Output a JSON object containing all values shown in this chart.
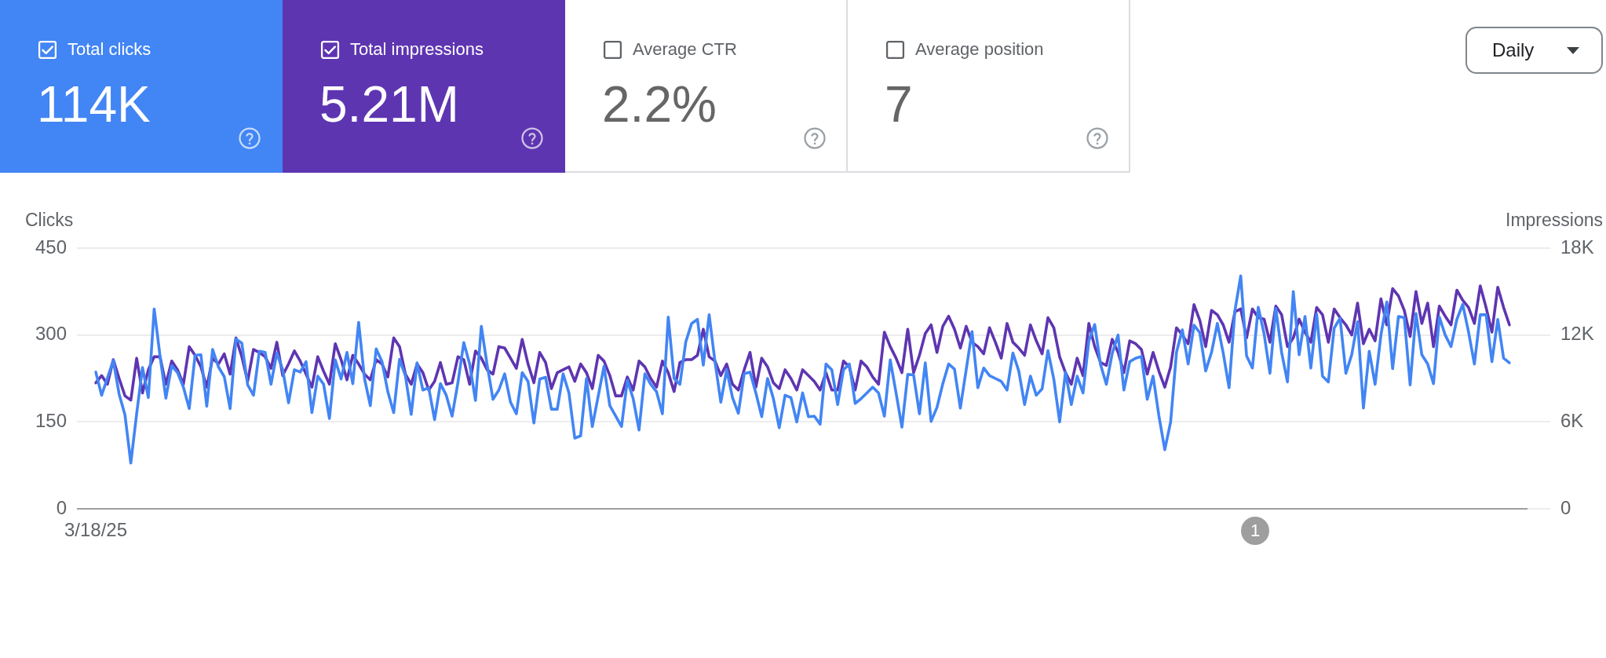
{
  "chart_data": [
    {
      "type": "other",
      "annotations": [
        "Total clicks",
        "114K",
        "Total impressions",
        "5.21M",
        "Average CTR",
        "2.2%",
        "Average position",
        "7",
        "Daily"
      ]
    },
    {
      "type": "line",
      "ylabel": "Clicks",
      "y2label": "Impressions",
      "ylim": [
        0,
        450
      ],
      "yticks": [
        0,
        150,
        300,
        450
      ],
      "y2lim": [
        0,
        18000
      ],
      "y2ticks": [
        0,
        {
          "value": 6000,
          "label": "6K"
        },
        {
          "value": 12000,
          "label": "12K"
        },
        {
          "value": 18000,
          "label": "18K"
        }
      ],
      "grid": "y",
      "annotations": [
        "1"
      ],
      "categories": [
        "3/18/25",
        null,
        null,
        null,
        null,
        null,
        null,
        null,
        null,
        null,
        null,
        null,
        null,
        null,
        null,
        null,
        null,
        null,
        null,
        null,
        null,
        null,
        null,
        null,
        null,
        null,
        null,
        null,
        null,
        null,
        null,
        null,
        null,
        null,
        null,
        null,
        null,
        null,
        null,
        null,
        null,
        null,
        null,
        null,
        null,
        null,
        null,
        null,
        null,
        null,
        null,
        null,
        null,
        null,
        null,
        null,
        null,
        null,
        null,
        null,
        null,
        null,
        null,
        null,
        null,
        null,
        null,
        null,
        null,
        null,
        null,
        null,
        null,
        null,
        null,
        null,
        null,
        null,
        null,
        null,
        null,
        null,
        null,
        null,
        null,
        null,
        null,
        null,
        null,
        null,
        null,
        null,
        null,
        null,
        null,
        null,
        null,
        null,
        null,
        null,
        null,
        null,
        null,
        null,
        null,
        null,
        null,
        null,
        null,
        null,
        null,
        null,
        null,
        null,
        null,
        null,
        null,
        null,
        null,
        null,
        null,
        null,
        null,
        null,
        null,
        null,
        null,
        null,
        null,
        null,
        null,
        null,
        null,
        null,
        null,
        null,
        null,
        null,
        null,
        null,
        null,
        null,
        null,
        null,
        null,
        null,
        null,
        null,
        null,
        null,
        null,
        null,
        null,
        null,
        null,
        null,
        null,
        null,
        null,
        null,
        null,
        null,
        null,
        null,
        null,
        null,
        null,
        null,
        null,
        null,
        null,
        null,
        null,
        null,
        null,
        null,
        null,
        null,
        null,
        null,
        null,
        null,
        null,
        null,
        null,
        null,
        null,
        null,
        null,
        null,
        null,
        null,
        null,
        null,
        null,
        null,
        null,
        null,
        null,
        null,
        null,
        null,
        null,
        null,
        null,
        null,
        null,
        null,
        null,
        null,
        null,
        null,
        null,
        null,
        null,
        null,
        null,
        null,
        null,
        null,
        null,
        null,
        null,
        null,
        null,
        null,
        null,
        null,
        null,
        null,
        null,
        null,
        null,
        null,
        null,
        null,
        null,
        null,
        null,
        null,
        null,
        null,
        null
      ],
      "series": [
        {
          "color": "#4285f4",
          "values": [
            236,
            196,
            226,
            256,
            198,
            162,
            79,
            164,
            244,
            192,
            345,
            264,
            191,
            247,
            235,
            210,
            173,
            265,
            266,
            177,
            275,
            245,
            228,
            173,
            293,
            286,
            214,
            196,
            272,
            270,
            215,
            269,
            240,
            183,
            240,
            236,
            254,
            166,
            229,
            215,
            156,
            257,
            224,
            270,
            216,
            322,
            225,
            178,
            276,
            254,
            202,
            166,
            258,
            230,
            163,
            252,
            205,
            209,
            154,
            216,
            196,
            160,
            218,
            287,
            250,
            187,
            315,
            248,
            189,
            205,
            233,
            184,
            164,
            235,
            220,
            148,
            224,
            227,
            172,
            172,
            233,
            200,
            122,
            126,
            225,
            142,
            194,
            246,
            178,
            160,
            142,
            222,
            190,
            136,
            233,
            215,
            202,
            164,
            331,
            225,
            215,
            288,
            320,
            327,
            248,
            335,
            254,
            184,
            240,
            192,
            165,
            233,
            236,
            200,
            159,
            225,
            190,
            140,
            196,
            192,
            150,
            200,
            159,
            160,
            146,
            250,
            240,
            180,
            240,
            250,
            182,
            190,
            200,
            210,
            200,
            160,
            257,
            200,
            141,
            232,
            231,
            164,
            252,
            151,
            175,
            216,
            250,
            241,
            174,
            240,
            306,
            209,
            243,
            230,
            225,
            220,
            205,
            269,
            238,
            180,
            229,
            196,
            207,
            273,
            224,
            150,
            236,
            180,
            229,
            200,
            290,
            318,
            249,
            215,
            268,
            300,
            205,
            254,
            260,
            263,
            189,
            229,
            160,
            102,
            150,
            270,
            309,
            250,
            317,
            304,
            238,
            270,
            320,
            269,
            209,
            342,
            402,
            264,
            243,
            348,
            302,
            234,
            346,
            270,
            219,
            375,
            266,
            332,
            243,
            336,
            229,
            219,
            312,
            329,
            234,
            266,
            323,
            174,
            272,
            215,
            300,
            357,
            242,
            332,
            330,
            214,
            337,
            266,
            250,
            216,
            331,
            300,
            280,
            327,
            353,
            305,
            250,
            335,
            335,
            254,
            327,
            260,
            252
          ]
        },
        {
          "color": "#5e35b1",
          "axis": "y2",
          "values": [
            8700,
            9200,
            8600,
            10300,
            9000,
            7800,
            7500,
            10400,
            8000,
            9600,
            10500,
            10500,
            8600,
            10200,
            9600,
            8600,
            11200,
            10600,
            9800,
            8400,
            10400,
            10000,
            10700,
            9300,
            11800,
            10500,
            8800,
            11000,
            10800,
            10500,
            9700,
            11500,
            9200,
            10000,
            10900,
            10200,
            9300,
            8400,
            10500,
            9500,
            8600,
            11400,
            10300,
            8900,
            10600,
            10000,
            9300,
            8900,
            10300,
            10000,
            9100,
            11800,
            11200,
            9300,
            8600,
            10000,
            9400,
            8200,
            8800,
            10100,
            8600,
            8700,
            10500,
            10300,
            8600,
            10900,
            10400,
            9600,
            9300,
            11200,
            11100,
            10400,
            9700,
            11700,
            10000,
            8700,
            10800,
            10100,
            8300,
            9400,
            9600,
            9800,
            8800,
            10000,
            9400,
            8300,
            10600,
            10200,
            9200,
            7800,
            7800,
            9100,
            8200,
            10200,
            9800,
            9000,
            8400,
            10200,
            9400,
            8100,
            10100,
            10300,
            10300,
            10600,
            12400,
            10500,
            10200,
            9200,
            10000,
            8600,
            8200,
            9600,
            10800,
            8400,
            10400,
            9800,
            8700,
            8300,
            9600,
            9000,
            8200,
            9600,
            9200,
            8800,
            8200,
            9400,
            8200,
            8200,
            10200,
            9800,
            8200,
            10200,
            9800,
            9100,
            8600,
            12200,
            11200,
            10400,
            9400,
            12400,
            9400,
            10600,
            12100,
            12700,
            10800,
            12600,
            13300,
            12400,
            11100,
            12600,
            11500,
            11200,
            10700,
            12500,
            11500,
            10400,
            12800,
            11500,
            11100,
            10600,
            12700,
            11600,
            10700,
            13200,
            12500,
            10500,
            9400,
            8600,
            10400,
            9200,
            12800,
            11200,
            10100,
            9900,
            11700,
            10800,
            9400,
            11600,
            11400,
            11000,
            9300,
            10800,
            9500,
            8400,
            9800,
            12500,
            12000,
            11400,
            14100,
            13000,
            11200,
            13700,
            13400,
            12700,
            11500,
            13600,
            13800,
            11800,
            13800,
            13200,
            13100,
            11500,
            14000,
            13400,
            11200,
            11800,
            13100,
            12200,
            11500,
            13900,
            13400,
            11500,
            13800,
            13200,
            12700,
            12000,
            14200,
            11400,
            12400,
            11600,
            14500,
            12700,
            15200,
            14700,
            13700,
            11900,
            15000,
            12800,
            14200,
            11200,
            14000,
            13300,
            12700,
            15100,
            14400,
            13900,
            12800,
            15400,
            13900,
            12200,
            15300,
            13900,
            12700
          ]
        }
      ]
    }
  ]
}
